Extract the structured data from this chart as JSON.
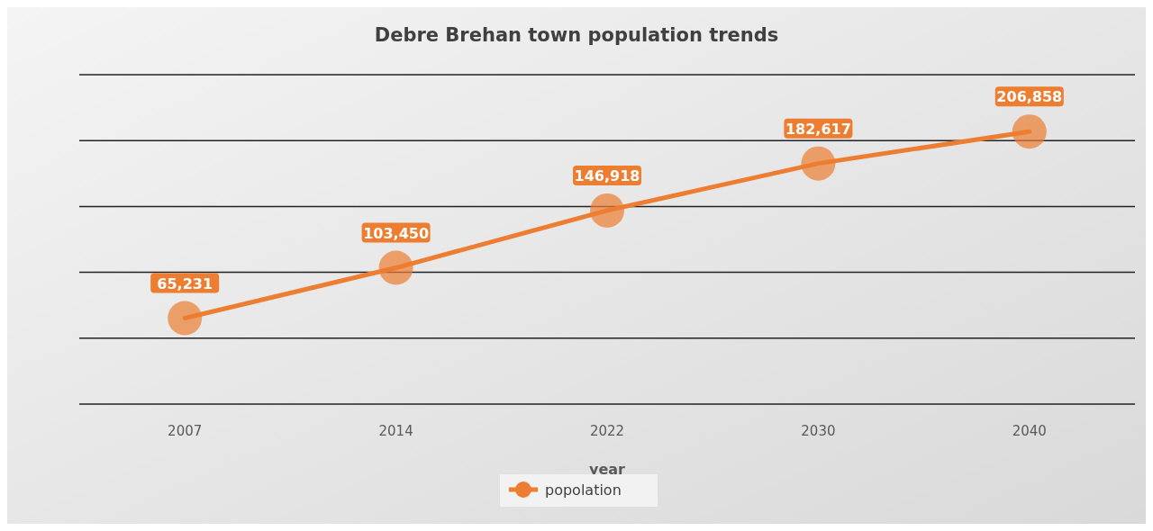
{
  "chart_data": {
    "type": "line",
    "title": "Debre Brehan town population trends",
    "xlabel": "year",
    "categories": [
      "2007",
      "2014",
      "2022",
      "2030",
      "2040"
    ],
    "series": [
      {
        "name": "popolation",
        "color": "#ed7d31",
        "values": [
          65231,
          103450,
          146918,
          182617,
          206858
        ],
        "value_labels": [
          "65,231",
          "103,450",
          "146,918",
          "182,617",
          "206,858"
        ]
      }
    ],
    "ylim": [
      0,
      250000
    ],
    "yticks": [
      {
        "value": 0,
        "label": null
      },
      {
        "value": 50000,
        "label": null
      },
      {
        "value": 100000,
        "label": null
      },
      {
        "value": 150000,
        "label": null
      },
      {
        "value": 200000,
        "label": null
      },
      {
        "value": 250000,
        "label": null
      }
    ],
    "tick_labels": "x",
    "grid": "y",
    "legend": "bottom",
    "marker": "circle",
    "line_style": "solid"
  }
}
